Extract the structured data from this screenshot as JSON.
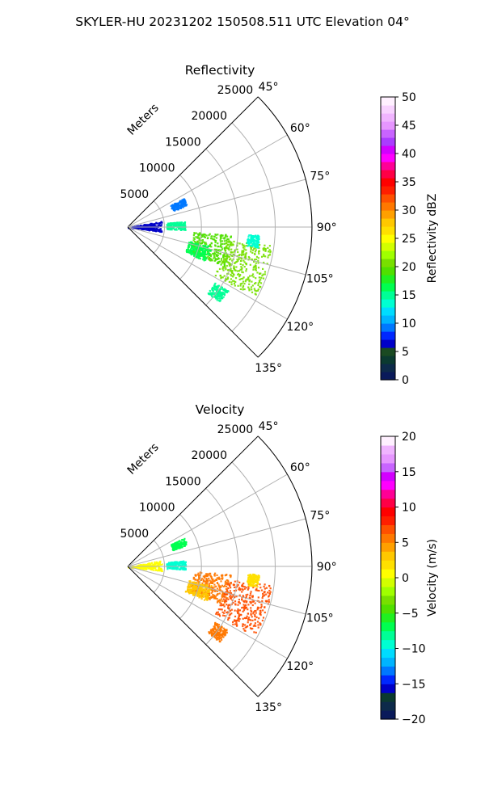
{
  "figure_title": "SKYLER-HU  20231202  150508.511 UTC Elevation 04°",
  "chart_data": [
    {
      "type": "polar-sector",
      "title": "Reflectivity",
      "range_axis_label": "Meters",
      "range_ticks": [
        5000,
        10000,
        15000,
        20000,
        25000
      ],
      "range_ticks_text": [
        "5000",
        "10000",
        "15000",
        "20000",
        "25000"
      ],
      "azimuth_ticks": [
        45,
        60,
        75,
        90,
        105,
        120,
        135
      ],
      "azimuth_tick_labels": [
        "45°",
        "60°",
        "75°",
        "90°",
        "105°",
        "120°",
        "135°"
      ],
      "azimuth_range_deg": [
        45,
        135
      ],
      "range_limit_m": 25000,
      "grid": true,
      "colorbar": {
        "label": "Reflectivity dBZ",
        "range": [
          0,
          50
        ],
        "ticks": [
          0,
          5,
          10,
          15,
          20,
          25,
          30,
          35,
          40,
          45,
          50
        ],
        "tick_labels": [
          "0",
          "5",
          "10",
          "15",
          "20",
          "25",
          "30",
          "35",
          "40",
          "45",
          "50"
        ],
        "colors": [
          "#0a1a5a",
          "#0d2a4a",
          "#0b3a30",
          "#1a4a22",
          "#0000c8",
          "#0028ff",
          "#0078ff",
          "#00b4ff",
          "#00dcff",
          "#00ffd2",
          "#00ff96",
          "#00ff50",
          "#20f020",
          "#50e000",
          "#78e000",
          "#a0ff00",
          "#d2ff00",
          "#ffff00",
          "#ffe000",
          "#ffc800",
          "#ffa000",
          "#ff7800",
          "#ff5000",
          "#ff1e00",
          "#ff0000",
          "#ff0046",
          "#ff0096",
          "#ff00ff",
          "#d200ff",
          "#aa3cff",
          "#c864ff",
          "#e696ff",
          "#f0b4ff",
          "#f8d2ff",
          "#fff0ff"
        ]
      },
      "echo_regions": [
        {
          "az": 66,
          "r": 7500,
          "dz": 4,
          "level": 12,
          "color": "#0078ff"
        },
        {
          "az": 88,
          "r": 6500,
          "dz": 5,
          "level": 15,
          "color": "#00ff96"
        },
        {
          "az": 103,
          "r": 11500,
          "dz": 10,
          "level": 18,
          "color": "#50e000"
        },
        {
          "az": 108,
          "r": 16500,
          "dz": 12,
          "level": 20,
          "color": "#78e000"
        },
        {
          "az": 96,
          "r": 17000,
          "dz": 3,
          "level": 14,
          "color": "#00ffd2"
        },
        {
          "az": 126,
          "r": 15000,
          "dz": 4,
          "level": 15,
          "color": "#00ff96"
        },
        {
          "az": 108,
          "r": 10000,
          "dz": 6,
          "level": 16,
          "color": "#00ff50"
        },
        {
          "az": 88,
          "r": 2000,
          "dz": 10,
          "level": 6,
          "color": "#0000c8"
        }
      ]
    },
    {
      "type": "polar-sector",
      "title": "Velocity",
      "range_axis_label": "Meters",
      "range_ticks": [
        5000,
        10000,
        15000,
        20000,
        25000
      ],
      "range_ticks_text": [
        "5000",
        "10000",
        "15000",
        "20000",
        "25000"
      ],
      "azimuth_ticks": [
        45,
        60,
        75,
        90,
        105,
        120,
        135
      ],
      "azimuth_tick_labels": [
        "45°",
        "60°",
        "75°",
        "90°",
        "105°",
        "120°",
        "135°"
      ],
      "azimuth_range_deg": [
        45,
        135
      ],
      "range_limit_m": 25000,
      "grid": true,
      "colorbar": {
        "label": "Velocity (m/s)",
        "range": [
          -20,
          20
        ],
        "ticks": [
          -20,
          -15,
          -10,
          -5,
          0,
          5,
          10,
          15,
          20
        ],
        "tick_labels": [
          "−20",
          "−15",
          "−10",
          "−5",
          "0",
          "5",
          "10",
          "15",
          "20"
        ],
        "colors": [
          "#0a1a5a",
          "#0d2a4a",
          "#0b3a30",
          "#0000c8",
          "#0028ff",
          "#0078ff",
          "#00b4ff",
          "#00dcff",
          "#00ffd2",
          "#00ff96",
          "#00ff50",
          "#20f020",
          "#50e000",
          "#78e000",
          "#a0ff00",
          "#d2ff00",
          "#ffff00",
          "#ffe000",
          "#ffc800",
          "#ffa000",
          "#ff7800",
          "#ff5000",
          "#ff1e00",
          "#ff0000",
          "#ff0046",
          "#ff0096",
          "#ff00ff",
          "#d200ff",
          "#c864ff",
          "#e696ff",
          "#f0b4ff",
          "#fff0ff"
        ]
      },
      "echo_regions": [
        {
          "az": 66,
          "r": 7500,
          "dz": 4,
          "level": -8,
          "color": "#00ff50"
        },
        {
          "az": 88,
          "r": 6500,
          "dz": 5,
          "level": -9,
          "color": "#00ffd2"
        },
        {
          "az": 103,
          "r": 11500,
          "dz": 10,
          "level": 5,
          "color": "#ff7800"
        },
        {
          "az": 108,
          "r": 16500,
          "dz": 12,
          "level": 8,
          "color": "#ff5000"
        },
        {
          "az": 96,
          "r": 17000,
          "dz": 3,
          "level": 0,
          "color": "#ffe000"
        },
        {
          "az": 126,
          "r": 15000,
          "dz": 4,
          "level": 6,
          "color": "#ff7800"
        },
        {
          "az": 108,
          "r": 10000,
          "dz": 6,
          "level": 2,
          "color": "#ffc800"
        },
        {
          "az": 88,
          "r": 2000,
          "dz": 10,
          "level": 0,
          "color": "#ffff00"
        }
      ]
    }
  ]
}
